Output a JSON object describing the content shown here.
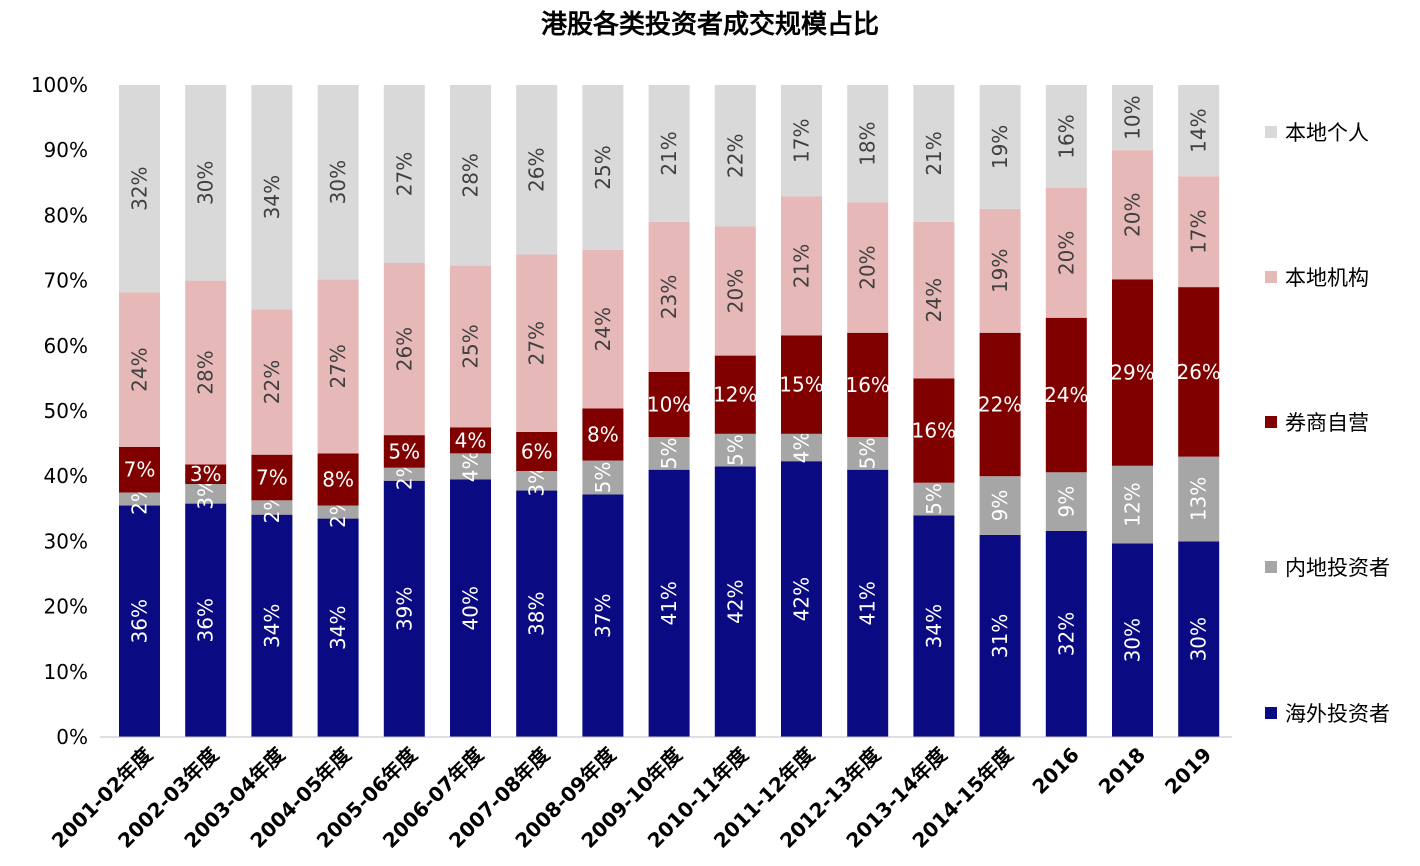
{
  "chart_data": {
    "type": "bar",
    "stacked": true,
    "orientation": "vertical",
    "title": "港股各类投资者成交规模占比",
    "xlabel": "",
    "ylabel": "",
    "ylim": [
      0,
      100
    ],
    "yticks": [
      "0%",
      "10%",
      "20%",
      "30%",
      "40%",
      "50%",
      "60%",
      "70%",
      "80%",
      "90%",
      "100%"
    ],
    "categories": [
      "2001-02年度",
      "2002-03年度",
      "2003-04年度",
      "2004-05年度",
      "2005-06年度",
      "2006-07年度",
      "2007-08年度",
      "2008-09年度",
      "2009-10年度",
      "2010-11年度",
      "2011-12年度",
      "2012-13年度",
      "2013-14年度",
      "2014-15年度",
      "2016",
      "2018",
      "2019"
    ],
    "series": [
      {
        "name": "海外投资者",
        "color": "#0a0a82",
        "label_color": "#ffffff",
        "values": [
          35.5,
          35.8,
          34.1,
          33.5,
          39.3,
          39.5,
          37.8,
          37.2,
          41.0,
          41.5,
          42.3,
          41.0,
          34.0,
          31.0,
          31.6,
          29.7,
          30.0
        ],
        "labels": [
          "36%",
          "36%",
          "34%",
          "34%",
          "39%",
          "40%",
          "38%",
          "37%",
          "41%",
          "42%",
          "42%",
          "41%",
          "34%",
          "31%",
          "32%",
          "30%",
          "30%"
        ]
      },
      {
        "name": "内地投资者",
        "color": "#a6a6a6",
        "label_color": "#ffffff",
        "values": [
          2.0,
          3.0,
          2.2,
          2.0,
          2.0,
          4.0,
          3.0,
          5.2,
          5.0,
          5.0,
          4.2,
          5.0,
          5.0,
          9.0,
          9.0,
          11.9,
          13.0
        ],
        "labels": [
          "2%",
          "3%",
          "2%",
          "2%",
          "2%",
          "4%",
          "3%",
          "5%",
          "5%",
          "5%",
          "4%",
          "5%",
          "5%",
          "9%",
          "9%",
          "12%",
          "13%"
        ]
      },
      {
        "name": "券商自营",
        "color": "#800000",
        "label_color": "#ffffff",
        "values": [
          7.0,
          3.0,
          7.0,
          8.0,
          5.0,
          4.0,
          6.0,
          8.0,
          10.0,
          12.0,
          15.1,
          16.0,
          16.0,
          22.0,
          23.7,
          28.6,
          26.0
        ],
        "labels": [
          "7%",
          "3%",
          "7%",
          "8%",
          "5%",
          "4%",
          "6%",
          "8%",
          "10%",
          "12%",
          "15%",
          "16%",
          "16%",
          "22%",
          "24%",
          "29%",
          "26%"
        ]
      },
      {
        "name": "本地机构",
        "color": "#e6b9b8",
        "label_color": "#404040",
        "values": [
          23.7,
          28.2,
          22.3,
          26.7,
          26.4,
          24.8,
          27.2,
          24.3,
          23.0,
          19.8,
          21.3,
          20.0,
          24.0,
          19.0,
          19.9,
          19.8,
          17.0
        ],
        "labels": [
          "24%",
          "28%",
          "22%",
          "27%",
          "26%",
          "25%",
          "27%",
          "24%",
          "23%",
          "20%",
          "21%",
          "20%",
          "24%",
          "19%",
          "20%",
          "20%",
          "17%"
        ]
      },
      {
        "name": "本地个人",
        "color": "#d9d9d9",
        "label_color": "#404040",
        "values": [
          31.8,
          30.0,
          34.4,
          29.8,
          27.3,
          27.7,
          26.0,
          25.3,
          21.0,
          21.7,
          17.1,
          18.0,
          21.0,
          19.0,
          15.8,
          10.0,
          14.0
        ],
        "labels": [
          "32%",
          "30%",
          "34%",
          "30%",
          "27%",
          "28%",
          "26%",
          "25%",
          "21%",
          "22%",
          "17%",
          "18%",
          "21%",
          "19%",
          "16%",
          "10%",
          "14%"
        ]
      }
    ],
    "legend": {
      "placement": "right",
      "order": [
        "本地个人",
        "本地机构",
        "券商自营",
        "内地投资者",
        "海外投资者"
      ]
    }
  }
}
